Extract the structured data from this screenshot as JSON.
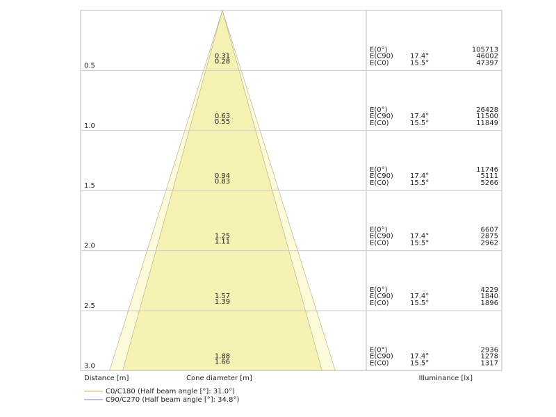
{
  "chart_data": {
    "type": "cone",
    "distance_label": "Distance [m]",
    "cone_label": "Cone diameter [m]",
    "illuminance_label": "Illuminance [lx]",
    "e_labels": [
      "E(0°)",
      "E(C90)",
      "E(C0)"
    ],
    "angle_labels": [
      "17.4°",
      "15.5°"
    ],
    "series": [
      {
        "name": "C0/C180 (Half beam angle [°]: 31.0°)",
        "color": "#f0b878",
        "fill": "#f6f2b4"
      },
      {
        "name": "C90/C270 (Half beam angle [°]: 34.8°)",
        "color": "#9a98c4",
        "fill": "#fcfad8"
      }
    ],
    "rows": [
      {
        "distance": 0.5,
        "d_c90": 0.31,
        "d_c0": 0.28,
        "e0": 105713,
        "e_c90": 46002,
        "e_c0": 47397
      },
      {
        "distance": {
          "value": 1,
          "label": "1.0"
        },
        "d_c90": 0.63,
        "d_c0": 0.55,
        "e0": 26428,
        "e_c90": 11500,
        "e_c0": 11849
      },
      {
        "distance": 1.5,
        "d_c90": 0.94,
        "d_c0": 0.83,
        "e0": 11746,
        "e_c90": 5111,
        "e_c0": 5266
      },
      {
        "distance": {
          "value": 2,
          "label": "2.0"
        },
        "d_c90": 1.25,
        "d_c0": 1.11,
        "e0": 6607,
        "e_c90": 2875,
        "e_c0": 2962
      },
      {
        "distance": 2.5,
        "d_c90": 1.57,
        "d_c0": 1.39,
        "e0": 4229,
        "e_c90": 1840,
        "e_c0": 1896
      },
      {
        "distance": {
          "value": 3,
          "label": "3.0"
        },
        "d_c90": 1.88,
        "d_c0": 1.66,
        "e0": 2936,
        "e_c90": 1278,
        "e_c0": 1317
      }
    ]
  }
}
